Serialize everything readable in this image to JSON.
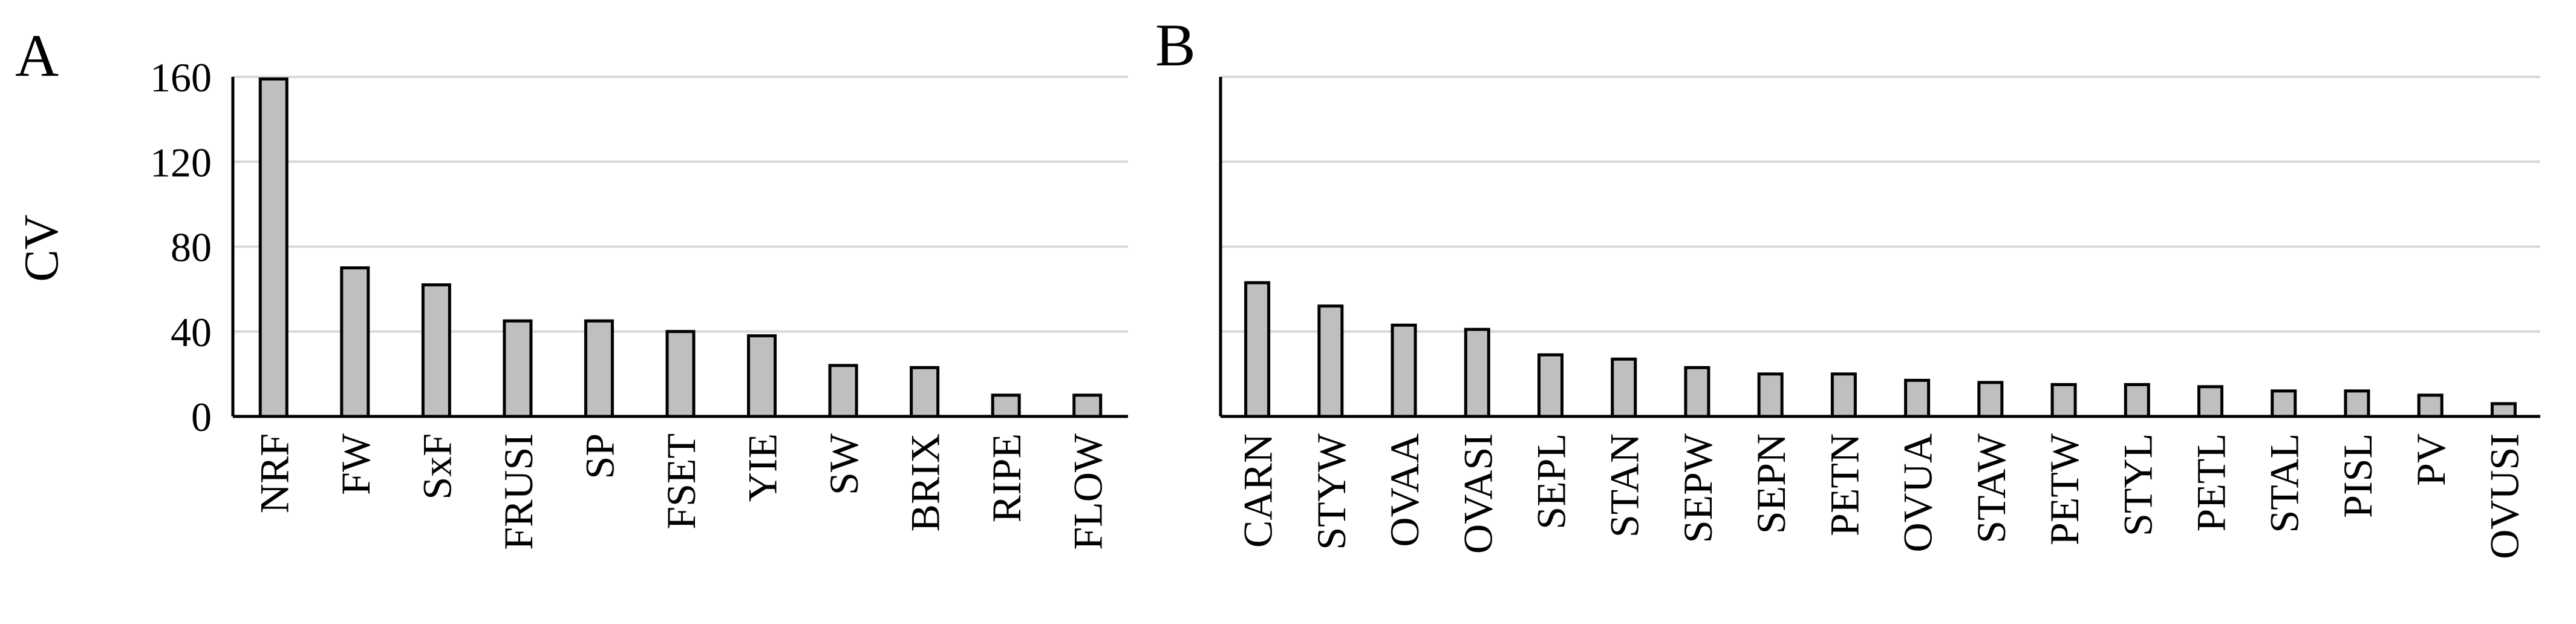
{
  "chart_data": [
    {
      "type": "bar",
      "panel_label": "A",
      "ylabel": "CV",
      "ylim": [
        0,
        160
      ],
      "yticks": [
        0,
        40,
        80,
        120,
        160
      ],
      "grid": true,
      "categories": [
        "NRF",
        "FW",
        "SxF",
        "FRUSI",
        "SP",
        "FSET",
        "YIE",
        "SW",
        "BRIX",
        "RIPE",
        "FLOW"
      ],
      "values": [
        159,
        70,
        62,
        45,
        45,
        40,
        38,
        24,
        23,
        10,
        10
      ]
    },
    {
      "type": "bar",
      "panel_label": "B",
      "ylabel": "",
      "ylim": [
        0,
        160
      ],
      "yticks": [
        0,
        40,
        80,
        120,
        160
      ],
      "grid": true,
      "categories": [
        "CARN",
        "STYW",
        "OVAA",
        "OVASI",
        "SEPL",
        "STAN",
        "SEPW",
        "SEPN",
        "PETN",
        "OVUA",
        "STAW",
        "PETW",
        "STYL",
        "PETL",
        "STAL",
        "PISL",
        "PV",
        "OVUSI"
      ],
      "values": [
        63,
        52,
        43,
        41,
        29,
        27,
        23,
        20,
        20,
        17,
        16,
        15,
        15,
        14,
        12,
        12,
        10,
        6
      ]
    }
  ]
}
